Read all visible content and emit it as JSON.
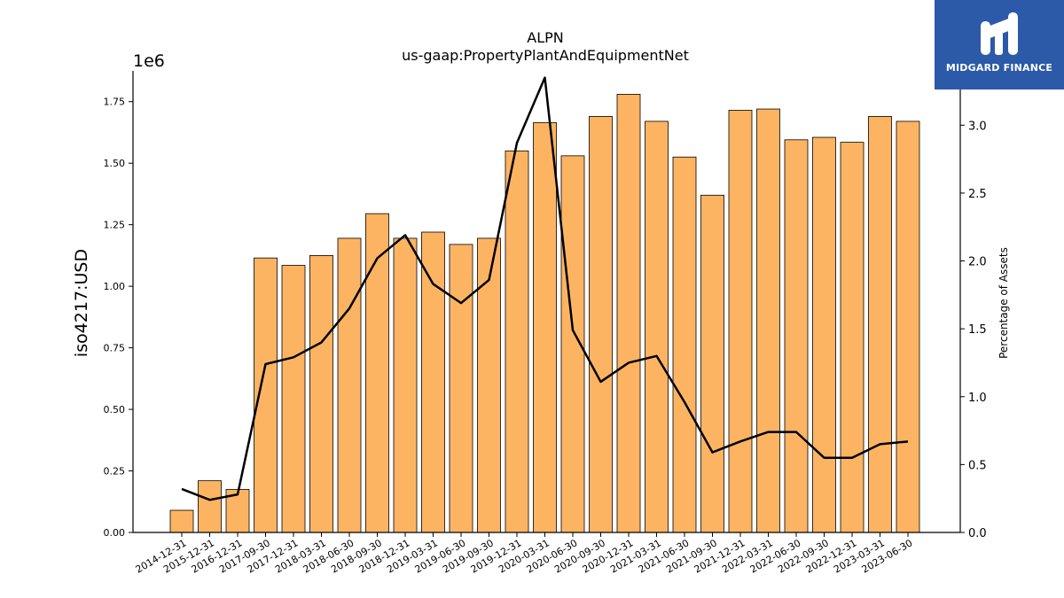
{
  "chart_data": {
    "type": "bar",
    "title": "ALPN",
    "subtitle": "us-gaap:PropertyPlantAndEquipmentNet",
    "ylabel": "iso4217:USD",
    "y2label": "Percentage of Assets",
    "yscale_label": "1e6",
    "ylim": [
      0,
      1.875
    ],
    "y2lim": [
      0,
      3.4
    ],
    "yticks": [
      "0.00",
      "0.25",
      "0.50",
      "0.75",
      "1.00",
      "1.25",
      "1.50",
      "1.75"
    ],
    "y2ticks": [
      "0.0",
      "0.5",
      "1.0",
      "1.5",
      "2.0",
      "2.5",
      "3.0"
    ],
    "categories": [
      "2014-12-31",
      "2015-12-31",
      "2016-12-31",
      "2017-09-30",
      "2017-12-31",
      "2018-03-31",
      "2018-06-30",
      "2018-09-30",
      "2018-12-31",
      "2019-03-31",
      "2019-06-30",
      "2019-09-30",
      "2019-12-31",
      "2020-03-31",
      "2020-06-30",
      "2020-09-30",
      "2020-12-31",
      "2021-03-31",
      "2021-06-30",
      "2021-09-30",
      "2021-12-31",
      "2022-03-31",
      "2022-06-30",
      "2022-09-30",
      "2022-12-31",
      "2023-03-31",
      "2023-06-30"
    ],
    "series": [
      {
        "type": "bar",
        "axis": "left",
        "color": "#fdb462",
        "values": [
          0.09,
          0.21,
          0.175,
          1.115,
          1.085,
          1.125,
          1.195,
          1.295,
          1.195,
          1.22,
          1.17,
          1.195,
          1.55,
          1.665,
          1.53,
          1.69,
          1.78,
          1.67,
          1.525,
          1.37,
          1.715,
          1.72,
          1.595,
          1.605,
          1.585,
          1.69,
          1.67
        ]
      },
      {
        "type": "line",
        "axis": "right",
        "color": "#000000",
        "values": [
          0.32,
          0.24,
          0.28,
          1.24,
          1.29,
          1.4,
          1.65,
          2.02,
          2.19,
          1.83,
          1.69,
          1.86,
          2.87,
          3.35,
          1.49,
          1.11,
          1.25,
          1.3,
          0.96,
          0.59,
          0.67,
          0.74,
          0.74,
          0.55,
          0.55,
          0.65,
          0.67
        ]
      }
    ]
  },
  "logo": {
    "text": "MIDGARD FINANCE",
    "color": "#2c59a8"
  }
}
